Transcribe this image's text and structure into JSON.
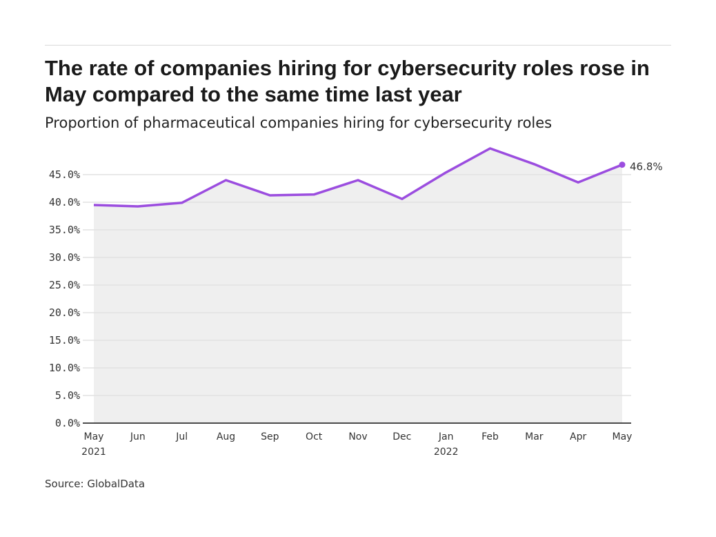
{
  "title": "The rate of companies hiring for cybersecurity roles rose in May compared to the same time last year",
  "subtitle": "Proportion of pharmaceutical companies hiring for cybersecurity roles",
  "source": "Source: GlobalData",
  "chart_data": {
    "type": "area",
    "title": "The rate of companies hiring for cybersecurity roles rose in May compared to the same time last year",
    "subtitle": "Proportion of pharmaceutical companies hiring for cybersecurity roles",
    "categories": [
      "May",
      "Jun",
      "Jul",
      "Aug",
      "Sep",
      "Oct",
      "Nov",
      "Dec",
      "Jan",
      "Feb",
      "Mar",
      "Apr",
      "May"
    ],
    "year_labels": [
      "2021",
      "",
      "",
      "",
      "",
      "",
      "",
      "",
      "2022",
      "",
      "",
      "",
      ""
    ],
    "values": [
      39.5,
      39.25,
      39.9,
      44.0,
      41.25,
      41.4,
      44.0,
      40.6,
      45.4,
      49.75,
      46.9,
      43.6,
      46.8
    ],
    "ylim": [
      0,
      50
    ],
    "yticks": [
      "0.0%",
      "5.0%",
      "10.0%",
      "15.0%",
      "20.0%",
      "25.0%",
      "30.0%",
      "35.0%",
      "40.0%",
      "45.0%"
    ],
    "end_label": "46.8%",
    "grid": true,
    "line_color": "#9b4ddf",
    "fill_color": "#efefef"
  }
}
